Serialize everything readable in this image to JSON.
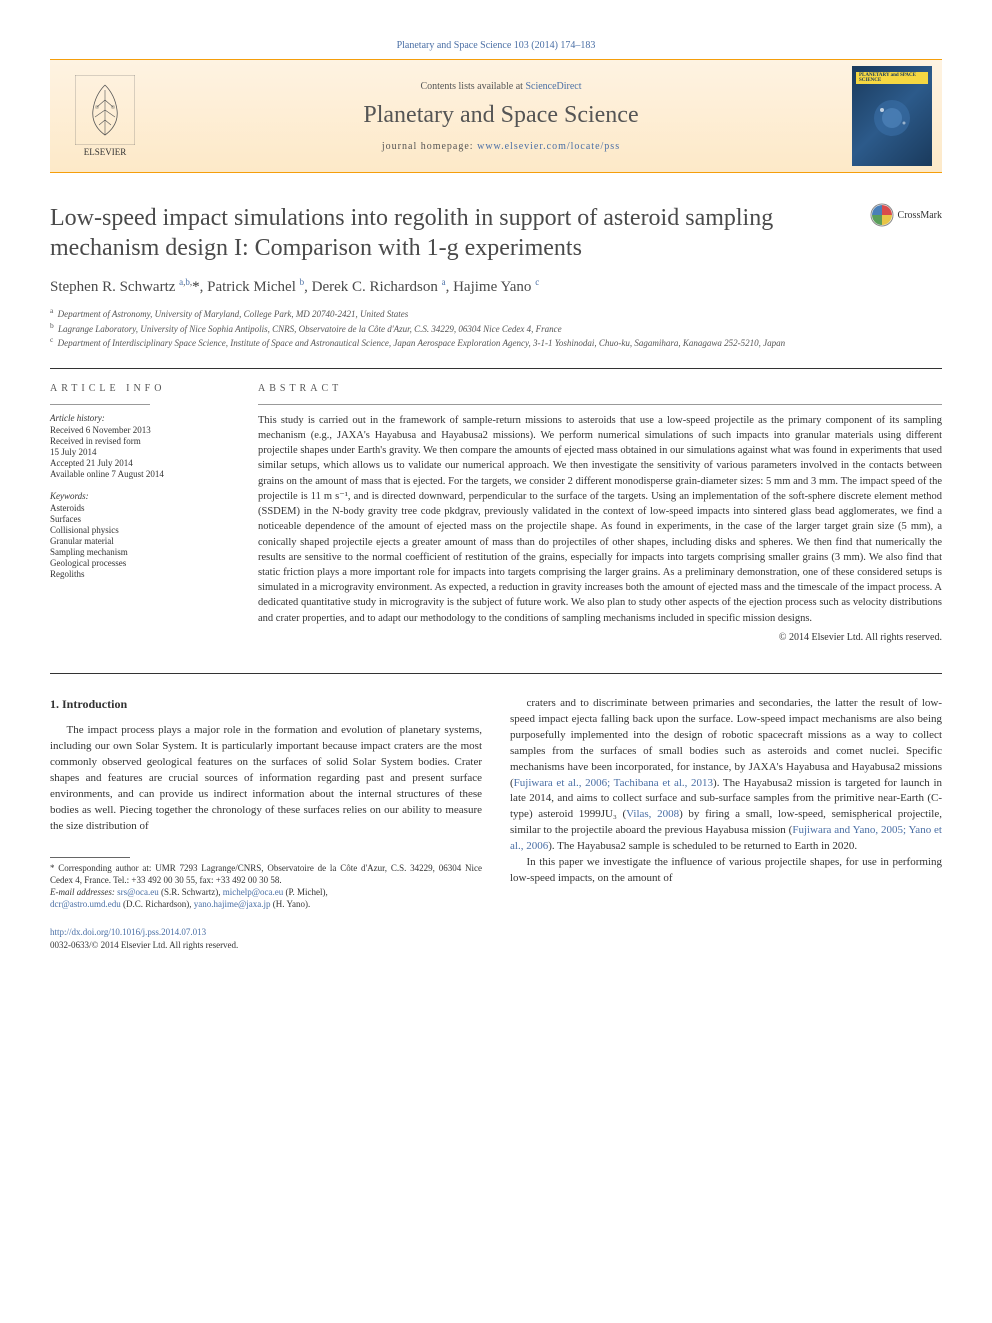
{
  "top_citation": "Planetary and Space Science 103 (2014) 174–183",
  "header": {
    "contents_prefix": "Contents lists available at ",
    "contents_link": "ScienceDirect",
    "journal_name": "Planetary and Space Science",
    "homepage_prefix": "journal homepage: ",
    "homepage_link": "www.elsevier.com/locate/pss",
    "publisher_name": "ELSEVIER",
    "cover_badge": "PLANETARY and SPACE SCIENCE"
  },
  "crossmark_label": "CrossMark",
  "title": "Low-speed impact simulations into regolith in support of asteroid sampling mechanism design I: Comparison with 1-g experiments",
  "authors_html": "Stephen R. Schwartz <sup><a href='#'>a</a>,<a href='#'>b</a>,</sup><span class='star'>*</span>, Patrick Michel <sup><a href='#'>b</a></sup>, Derek C. Richardson <sup><a href='#'>a</a></sup>, Hajime Yano <sup><a href='#'>c</a></sup>",
  "affiliations": [
    {
      "sup": "a",
      "text": "Department of Astronomy, University of Maryland, College Park, MD 20740-2421, United States"
    },
    {
      "sup": "b",
      "text": "Lagrange Laboratory, University of Nice Sophia Antipolis, CNRS, Observatoire de la Côte d'Azur, C.S. 34229, 06304 Nice Cedex 4, France"
    },
    {
      "sup": "c",
      "text": "Department of Interdisciplinary Space Science, Institute of Space and Astronautical Science, Japan Aerospace Exploration Agency, 3-1-1 Yoshinodai, Chuo-ku, Sagamihara, Kanagawa 252-5210, Japan"
    }
  ],
  "info_heading": "ARTICLE INFO",
  "history_label": "Article history:",
  "history": [
    "Received 6 November 2013",
    "Received in revised form",
    "15 July 2014",
    "Accepted 21 July 2014",
    "Available online 7 August 2014"
  ],
  "keywords_label": "Keywords:",
  "keywords": [
    "Asteroids",
    "Surfaces",
    "Collisional physics",
    "Granular material",
    "Sampling mechanism",
    "Geological processes",
    "Regoliths"
  ],
  "abstract_heading": "ABSTRACT",
  "abstract_text": "This study is carried out in the framework of sample-return missions to asteroids that use a low-speed projectile as the primary component of its sampling mechanism (e.g., JAXA's Hayabusa and Hayabusa2 missions). We perform numerical simulations of such impacts into granular materials using different projectile shapes under Earth's gravity. We then compare the amounts of ejected mass obtained in our simulations against what was found in experiments that used similar setups, which allows us to validate our numerical approach. We then investigate the sensitivity of various parameters involved in the contacts between grains on the amount of mass that is ejected. For the targets, we consider 2 different monodisperse grain-diameter sizes: 5 mm and 3 mm. The impact speed of the projectile is 11 m s⁻¹, and is directed downward, perpendicular to the surface of the targets. Using an implementation of the soft-sphere discrete element method (SSDEM) in the N-body gravity tree code pkdgrav, previously validated in the context of low-speed impacts into sintered glass bead agglomerates, we find a noticeable dependence of the amount of ejected mass on the projectile shape. As found in experiments, in the case of the larger target grain size (5 mm), a conically shaped projectile ejects a greater amount of mass than do projectiles of other shapes, including disks and spheres. We then find that numerically the results are sensitive to the normal coefficient of restitution of the grains, especially for impacts into targets comprising smaller grains (3 mm). We also find that static friction plays a more important role for impacts into targets comprising the larger grains. As a preliminary demonstration, one of these considered setups is simulated in a microgravity environment. As expected, a reduction in gravity increases both the amount of ejected mass and the timescale of the impact process. A dedicated quantitative study in microgravity is the subject of future work. We also plan to study other aspects of the ejection process such as velocity distributions and crater properties, and to adapt our methodology to the conditions of sampling mechanisms included in specific mission designs.",
  "copyright": "© 2014 Elsevier Ltd. All rights reserved.",
  "section1_heading": "1. Introduction",
  "col1_para1": "The impact process plays a major role in the formation and evolution of planetary systems, including our own Solar System. It is particularly important because impact craters are the most commonly observed geological features on the surfaces of solid Solar System bodies. Crater shapes and features are crucial sources of information regarding past and present surface environments, and can provide us indirect information about the internal structures of these bodies as well. Piecing together the chronology of these surfaces relies on our ability to measure the size distribution of",
  "col2_p1_pre": "craters and to discriminate between primaries and secondaries, the latter the result of low-speed impact ejecta falling back upon the surface. Low-speed impact mechanisms are also being purposefully implemented into the design of robotic spacecraft missions as a way to collect samples from the surfaces of small bodies such as asteroids and comet nuclei. Specific mechanisms have been incorporated, for instance, by JAXA's Hayabusa and Hayabusa2 missions (",
  "col2_link1": "Fujiwara et al., 2006; Tachibana et al., 2013",
  "col2_p1_mid": "). The Hayabusa2 mission is targeted for launch in late 2014, and aims to collect surface and sub-surface samples from the primitive near-Earth (C-type) asteroid 1999JU₃ (",
  "col2_link2": "Vilas, 2008",
  "col2_p1_mid2": ") by firing a small, low-speed, semispherical projectile, similar to the projectile aboard the previous Hayabusa mission (",
  "col2_link3": "Fujiwara and Yano, 2005; Yano et al., 2006",
  "col2_p1_post": "). The Hayabusa2 sample is scheduled to be returned to Earth in 2020.",
  "col2_para2": "In this paper we investigate the influence of various projectile shapes, for use in performing low-speed impacts, on the amount of",
  "footnote_corr": "* Corresponding author at: UMR 7293 Lagrange/CNRS, Observatoire de la Côte d'Azur, C.S. 34229, 06304 Nice Cedex 4, France. Tel.: +33 492 00 30 55, fax: +33 492 00 30 58.",
  "footnote_email_label": "E-mail addresses: ",
  "emails": [
    {
      "addr": "srs@oca.eu",
      "who": " (S.R. Schwartz), "
    },
    {
      "addr": "michelp@oca.eu",
      "who": " (P. Michel),"
    },
    {
      "addr": "dcr@astro.umd.edu",
      "who": " (D.C. Richardson), "
    },
    {
      "addr": "yano.hajime@jaxa.jp",
      "who": " (H. Yano)."
    }
  ],
  "doi_link": "http://dx.doi.org/10.1016/j.pss.2014.07.013",
  "issn_line": "0032-0633/© 2014 Elsevier Ltd. All rights reserved.",
  "colors": {
    "link": "#4a6fa5",
    "header_border": "#f59e0b",
    "header_bg_top": "#fef3e2",
    "header_bg_bottom": "#fde9c8",
    "text": "#333333"
  }
}
